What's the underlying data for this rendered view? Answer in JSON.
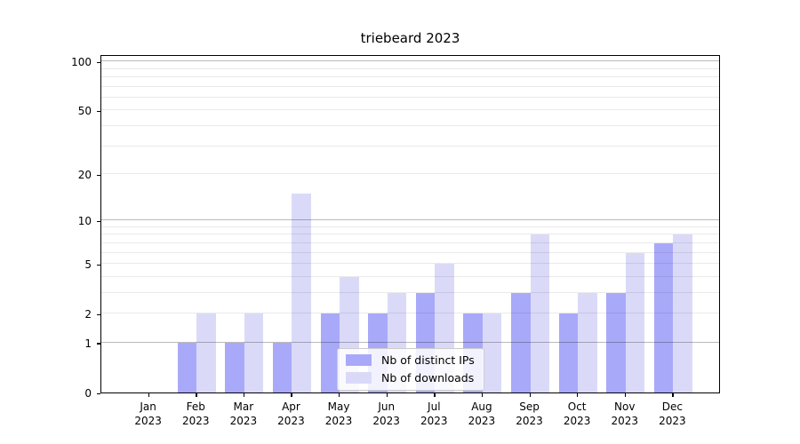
{
  "chart_data": {
    "type": "bar",
    "title": "triebeard 2023",
    "categories": [
      "Jan",
      "Feb",
      "Mar",
      "Apr",
      "May",
      "Jun",
      "Jul",
      "Aug",
      "Sep",
      "Oct",
      "Nov",
      "Dec"
    ],
    "year": "2023",
    "series": [
      {
        "name": "Nb of distinct IPs",
        "color": "#a9a9fa",
        "values": [
          0,
          1,
          1,
          1,
          2,
          2,
          3,
          2,
          3,
          2,
          3,
          7
        ]
      },
      {
        "name": "Nb of downloads",
        "color": "#dadaf8",
        "values": [
          0,
          2,
          2,
          15,
          4,
          3,
          5,
          2,
          8,
          3,
          6,
          8
        ]
      }
    ],
    "yscale": "log1p",
    "ylim": [
      0,
      111
    ],
    "yticks": [
      0,
      1,
      2,
      5,
      10,
      20,
      50,
      100
    ],
    "grid_major": [
      1,
      10,
      100
    ],
    "grid_minor": [
      2,
      3,
      4,
      5,
      6,
      7,
      8,
      9,
      20,
      30,
      40,
      50,
      60,
      70,
      80,
      90
    ],
    "legend_position": "lower center-right inside plot",
    "xlabel": "",
    "ylabel": ""
  }
}
